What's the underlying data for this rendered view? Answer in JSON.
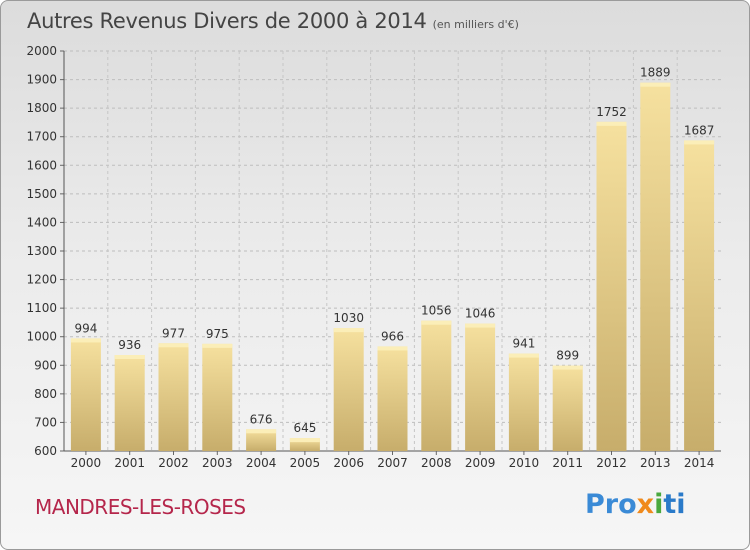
{
  "chart_data": {
    "type": "bar",
    "title": "Autres Revenus Divers de 2000 à 2014",
    "unit_label": "(en milliers d'€)",
    "categories": [
      "2000",
      "2001",
      "2002",
      "2003",
      "2004",
      "2005",
      "2006",
      "2007",
      "2008",
      "2009",
      "2010",
      "2011",
      "2012",
      "2013",
      "2014"
    ],
    "values": [
      994,
      936,
      977,
      975,
      676,
      645,
      1030,
      966,
      1056,
      1046,
      941,
      899,
      1752,
      1889,
      1687
    ],
    "ylim": [
      600,
      2000
    ],
    "yticks": [
      600,
      700,
      800,
      900,
      1000,
      1100,
      1200,
      1300,
      1400,
      1500,
      1600,
      1700,
      1800,
      1900,
      2000
    ],
    "grid": true,
    "bar_color": "#e8cf85"
  },
  "place": "MANDRES-LES-ROSES",
  "logo": {
    "parts": [
      "Pro",
      "x",
      "i",
      "ti"
    ]
  }
}
